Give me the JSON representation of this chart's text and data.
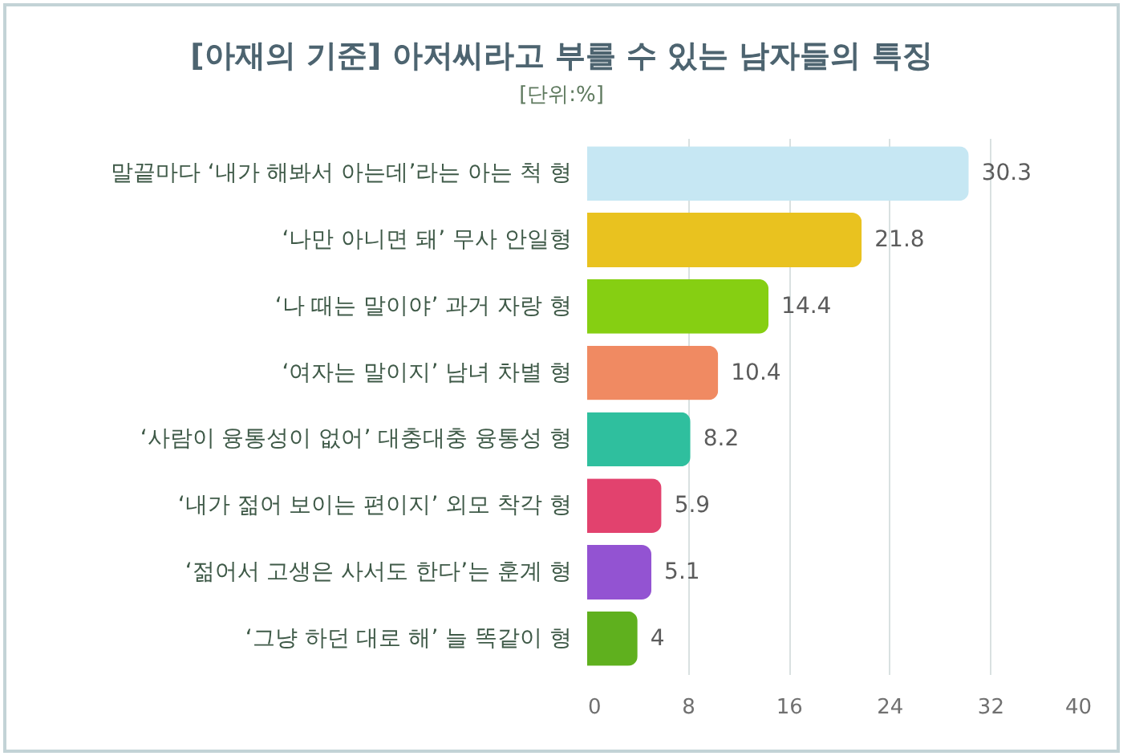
{
  "chart_data": {
    "type": "bar",
    "orientation": "horizontal",
    "title": "[아재의 기준] 아저씨라고 부를 수 있는 남자들의 특징",
    "subtitle": "[단위:%]",
    "categories": [
      "말끝마다 ‘내가 해봐서 아는데’라는 아는 척 형",
      "‘나만 아니면 돼’ 무사 안일형",
      "‘나 때는 말이야’ 과거 자랑 형",
      "‘여자는 말이지’ 남녀 차별 형",
      "‘사람이 융통성이 없어’ 대충대충 융통성 형",
      "‘내가 젊어 보이는 편이지’ 외모 착각 형",
      "‘젊어서 고생은 사서도 한다’는 훈계 형",
      "‘그냥 하던 대로 해’ 늘 똑같이 형"
    ],
    "values": [
      30.3,
      21.8,
      14.4,
      10.4,
      8.2,
      5.9,
      5.1,
      4
    ],
    "colors": [
      "#c6e7f3",
      "#e9c21f",
      "#86cf12",
      "#f08a62",
      "#2fbf9e",
      "#e2426e",
      "#9353d2",
      "#5fb01e"
    ],
    "xlim": [
      0,
      40
    ],
    "xticks": [
      0,
      8,
      16,
      24,
      32,
      40
    ],
    "grid": "x",
    "data_labels": true
  }
}
